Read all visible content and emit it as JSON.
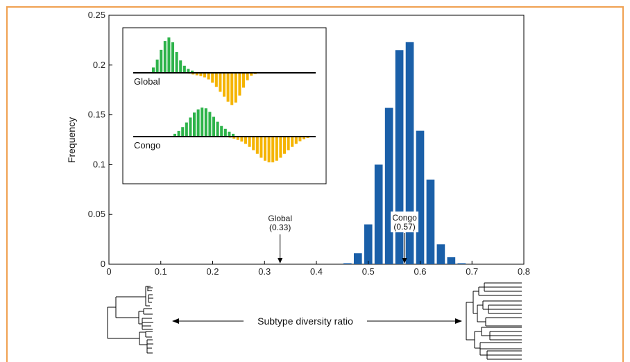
{
  "chart_data": {
    "type": "bar",
    "ylabel": "Frequency",
    "xlabel": "Subtype diversity ratio",
    "xlim": [
      0,
      0.8
    ],
    "ylim": [
      0,
      0.25
    ],
    "xticks": [
      "0",
      "0.1",
      "0.2",
      "0.3",
      "0.4",
      "0.5",
      "0.6",
      "0.7",
      "0.8"
    ],
    "yticks": [
      "0",
      "0.05",
      "0.1",
      "0.15",
      "0.2",
      "0.25"
    ],
    "grid": false,
    "bar_color": "#1a5fa8",
    "x": [
      0.46,
      0.48,
      0.5,
      0.52,
      0.54,
      0.56,
      0.58,
      0.6,
      0.62,
      0.64,
      0.66,
      0.68
    ],
    "values": [
      0.001,
      0.011,
      0.04,
      0.1,
      0.157,
      0.215,
      0.223,
      0.134,
      0.085,
      0.02,
      0.007,
      0.001
    ],
    "annotations": [
      {
        "name": "global",
        "label": "Global",
        "value_label": "(0.33)",
        "x": 0.33
      },
      {
        "name": "congo",
        "label": "Congo",
        "value_label": "(0.57)",
        "x": 0.57
      }
    ],
    "inset": {
      "green": "#2db34a",
      "yellow": "#f5b400",
      "panels": [
        {
          "label": "Global",
          "up": [
            0.12,
            0.3,
            0.52,
            0.72,
            0.8,
            0.69,
            0.47,
            0.28,
            0.16,
            0.09,
            0.05
          ],
          "down": [
            0.02,
            0.04,
            0.06,
            0.08,
            0.11,
            0.16,
            0.24,
            0.34,
            0.46,
            0.58,
            0.7,
            0.78,
            0.72,
            0.55,
            0.36,
            0.18,
            0.07,
            0.03
          ]
        },
        {
          "label": "Congo",
          "up": [
            0.08,
            0.16,
            0.27,
            0.4,
            0.54,
            0.68,
            0.77,
            0.82,
            0.8,
            0.7,
            0.56,
            0.42,
            0.3,
            0.22,
            0.14,
            0.08
          ],
          "down": [
            0.03,
            0.06,
            0.1,
            0.15,
            0.22,
            0.31,
            0.41,
            0.52,
            0.64,
            0.73,
            0.78,
            0.78,
            0.73,
            0.64,
            0.52,
            0.41,
            0.31,
            0.22,
            0.14,
            0.08,
            0.04,
            0.02
          ]
        }
      ]
    }
  }
}
